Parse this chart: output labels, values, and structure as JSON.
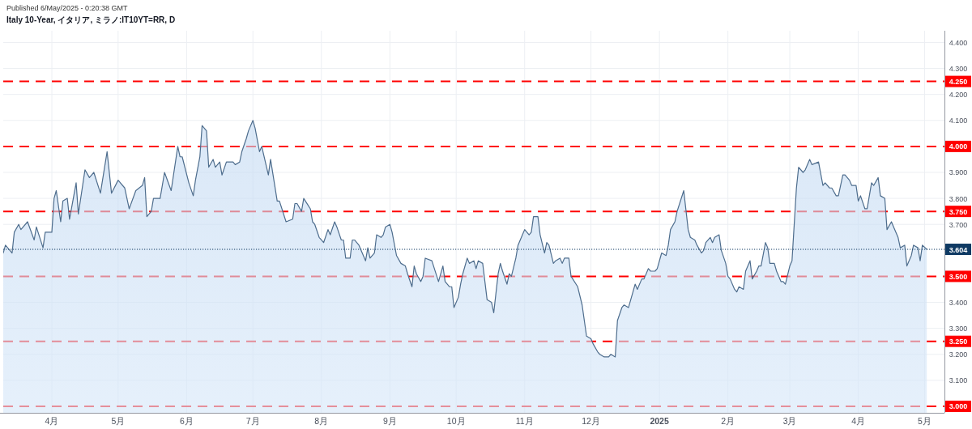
{
  "chart_data": {
    "type": "area",
    "title": "Italy 10-Year, イタリア, ミラノ:IT10YT=RR, D",
    "annotations": [
      "Published 6/May/2025 - 0:20:38 GMT"
    ],
    "x": [
      "2024-03-10",
      "2024-03-11",
      "2024-03-14",
      "2024-03-15",
      "2024-03-17",
      "2024-03-18",
      "2024-03-21",
      "2024-03-24",
      "2024-03-25",
      "2024-03-28",
      "2024-03-29",
      "2024-04-01",
      "2024-04-02",
      "2024-04-03",
      "2024-04-05",
      "2024-04-06",
      "2024-04-08",
      "2024-04-09",
      "2024-04-12",
      "2024-04-13",
      "2024-04-16",
      "2024-04-18",
      "2024-04-20",
      "2024-04-23",
      "2024-04-26",
      "2024-04-28",
      "2024-05-01",
      "2024-05-04",
      "2024-05-06",
      "2024-05-09",
      "2024-05-12",
      "2024-05-13",
      "2024-05-14",
      "2024-05-16",
      "2024-05-17",
      "2024-05-20",
      "2024-05-22",
      "2024-05-25",
      "2024-05-28",
      "2024-05-29",
      "2024-05-30",
      "2024-06-02",
      "2024-06-04",
      "2024-06-05",
      "2024-06-07",
      "2024-06-08",
      "2024-06-10",
      "2024-06-11",
      "2024-06-13",
      "2024-06-14",
      "2024-06-16",
      "2024-06-17",
      "2024-06-19",
      "2024-06-22",
      "2024-06-23",
      "2024-06-25",
      "2024-06-26",
      "2024-06-28",
      "2024-06-29",
      "2024-07-01",
      "2024-07-02",
      "2024-07-04",
      "2024-07-05",
      "2024-07-08",
      "2024-07-09",
      "2024-07-12",
      "2024-07-13",
      "2024-07-16",
      "2024-07-19",
      "2024-07-20",
      "2024-07-21",
      "2024-07-23",
      "2024-07-24",
      "2024-07-27",
      "2024-07-28",
      "2024-07-29",
      "2024-07-31",
      "2024-08-01",
      "2024-08-02",
      "2024-08-04",
      "2024-08-05",
      "2024-08-07",
      "2024-08-08",
      "2024-08-10",
      "2024-08-11",
      "2024-08-12",
      "2024-08-14",
      "2024-08-15",
      "2024-08-16",
      "2024-08-18",
      "2024-08-21",
      "2024-08-22",
      "2024-08-23",
      "2024-08-25",
      "2024-08-26",
      "2024-08-28",
      "2024-08-29",
      "2024-08-30",
      "2024-09-01",
      "2024-09-02",
      "2024-09-04",
      "2024-09-06",
      "2024-09-08",
      "2024-09-09",
      "2024-09-11",
      "2024-09-12",
      "2024-09-13",
      "2024-09-15",
      "2024-09-16",
      "2024-09-17",
      "2024-09-20",
      "2024-09-23",
      "2024-09-25",
      "2024-09-26",
      "2024-09-28",
      "2024-09-29",
      "2024-09-30",
      "2024-10-02",
      "2024-10-03",
      "2024-10-04",
      "2024-10-06",
      "2024-10-07",
      "2024-10-09",
      "2024-10-10",
      "2024-10-11",
      "2024-10-13",
      "2024-10-14",
      "2024-10-15",
      "2024-10-17",
      "2024-10-18",
      "2024-10-20",
      "2024-10-21",
      "2024-10-22",
      "2024-10-24",
      "2024-10-25",
      "2024-10-26",
      "2024-10-28",
      "2024-10-29",
      "2024-10-31",
      "2024-11-01",
      "2024-11-03",
      "2024-11-04",
      "2024-11-05",
      "2024-11-07",
      "2024-11-08",
      "2024-11-10",
      "2024-11-11",
      "2024-11-12",
      "2024-11-14",
      "2024-11-15",
      "2024-11-17",
      "2024-11-18",
      "2024-11-19",
      "2024-11-21",
      "2024-11-22",
      "2024-11-25",
      "2024-11-27",
      "2024-11-28",
      "2024-11-29",
      "2024-12-01",
      "2024-12-02",
      "2024-12-04",
      "2024-12-05",
      "2024-12-07",
      "2024-12-09",
      "2024-12-10",
      "2024-12-12",
      "2024-12-13",
      "2024-12-15",
      "2024-12-16",
      "2024-12-18",
      "2024-12-19",
      "2024-12-21",
      "2024-12-22",
      "2024-12-24",
      "2024-12-25",
      "2024-12-27",
      "2024-12-28",
      "2024-12-30",
      "2024-12-31",
      "2025-01-02",
      "2025-01-04",
      "2025-01-05",
      "2025-01-06",
      "2025-01-08",
      "2025-01-09",
      "2025-01-12",
      "2025-01-14",
      "2025-01-15",
      "2025-01-17",
      "2025-01-18",
      "2025-01-20",
      "2025-01-21",
      "2025-01-22",
      "2025-01-24",
      "2025-01-25",
      "2025-01-26",
      "2025-01-28",
      "2025-01-29",
      "2025-01-31",
      "2025-02-01",
      "2025-02-02",
      "2025-02-04",
      "2025-02-05",
      "2025-02-06",
      "2025-02-08",
      "2025-02-09",
      "2025-02-11",
      "2025-02-12",
      "2025-02-14",
      "2025-02-15",
      "2025-02-16",
      "2025-02-18",
      "2025-02-19",
      "2025-02-20",
      "2025-02-22",
      "2025-02-23",
      "2025-02-25",
      "2025-02-26",
      "2025-02-27",
      "2025-03-01",
      "2025-03-02",
      "2025-03-04",
      "2025-03-05",
      "2025-03-07",
      "2025-03-08",
      "2025-03-10",
      "2025-03-11",
      "2025-03-14",
      "2025-03-16",
      "2025-03-17",
      "2025-03-19",
      "2025-03-20",
      "2025-03-22",
      "2025-03-23",
      "2025-03-25",
      "2025-03-26",
      "2025-03-28",
      "2025-03-29",
      "2025-03-31",
      "2025-04-01",
      "2025-04-02",
      "2025-04-04",
      "2025-04-05",
      "2025-04-07",
      "2025-04-08",
      "2025-04-10",
      "2025-04-11",
      "2025-04-13",
      "2025-04-14",
      "2025-04-16",
      "2025-04-17",
      "2025-04-19",
      "2025-04-20",
      "2025-04-22",
      "2025-04-23",
      "2025-04-25",
      "2025-04-26",
      "2025-04-28",
      "2025-04-29",
      "2025-04-30",
      "2025-05-02"
    ],
    "series": [
      {
        "color": "#4e6d8d",
        "values": [
          3.59,
          3.62,
          3.59,
          3.67,
          3.7,
          3.68,
          3.71,
          3.64,
          3.69,
          3.61,
          3.67,
          3.67,
          3.8,
          3.83,
          3.71,
          3.79,
          3.8,
          3.72,
          3.86,
          3.74,
          3.91,
          3.88,
          3.9,
          3.82,
          3.98,
          3.82,
          3.87,
          3.84,
          3.76,
          3.83,
          3.85,
          3.88,
          3.73,
          3.75,
          3.8,
          3.8,
          3.9,
          3.83,
          4.0,
          3.96,
          3.96,
          3.86,
          3.81,
          3.87,
          3.96,
          4.08,
          4.06,
          3.92,
          3.95,
          3.92,
          3.94,
          3.89,
          3.94,
          3.94,
          3.93,
          3.94,
          3.98,
          4.03,
          4.06,
          4.1,
          4.07,
          3.98,
          4.0,
          3.89,
          3.95,
          3.79,
          3.79,
          3.71,
          3.72,
          3.78,
          3.78,
          3.75,
          3.8,
          3.76,
          3.71,
          3.7,
          3.65,
          3.64,
          3.63,
          3.68,
          3.66,
          3.71,
          3.69,
          3.64,
          3.64,
          3.57,
          3.57,
          3.64,
          3.64,
          3.62,
          3.56,
          3.61,
          3.57,
          3.59,
          3.66,
          3.65,
          3.66,
          3.69,
          3.7,
          3.67,
          3.58,
          3.55,
          3.54,
          3.51,
          3.46,
          3.54,
          3.51,
          3.48,
          3.5,
          3.57,
          3.56,
          3.48,
          3.54,
          3.48,
          3.46,
          3.46,
          3.38,
          3.42,
          3.47,
          3.51,
          3.57,
          3.55,
          3.56,
          3.53,
          3.56,
          3.55,
          3.48,
          3.41,
          3.4,
          3.36,
          3.51,
          3.55,
          3.52,
          3.47,
          3.51,
          3.5,
          3.57,
          3.62,
          3.66,
          3.68,
          3.66,
          3.67,
          3.73,
          3.73,
          3.66,
          3.59,
          3.63,
          3.62,
          3.55,
          3.56,
          3.57,
          3.55,
          3.57,
          3.57,
          3.5,
          3.46,
          3.39,
          3.33,
          3.27,
          3.26,
          3.24,
          3.21,
          3.2,
          3.19,
          3.19,
          3.2,
          3.19,
          3.33,
          3.38,
          3.39,
          3.38,
          3.41,
          3.47,
          3.45,
          3.49,
          3.49,
          3.53,
          3.52,
          3.52,
          3.53,
          3.59,
          3.58,
          3.62,
          3.68,
          3.71,
          3.75,
          3.83,
          3.68,
          3.65,
          3.64,
          3.62,
          3.59,
          3.6,
          3.63,
          3.65,
          3.63,
          3.65,
          3.66,
          3.6,
          3.55,
          3.5,
          3.49,
          3.45,
          3.44,
          3.46,
          3.45,
          3.52,
          3.56,
          3.49,
          3.52,
          3.54,
          3.54,
          3.63,
          3.61,
          3.55,
          3.55,
          3.52,
          3.48,
          3.48,
          3.47,
          3.54,
          3.56,
          3.84,
          3.92,
          3.9,
          3.91,
          3.95,
          3.93,
          3.94,
          3.85,
          3.86,
          3.84,
          3.84,
          3.81,
          3.81,
          3.89,
          3.89,
          3.87,
          3.85,
          3.85,
          3.79,
          3.81,
          3.76,
          3.76,
          3.86,
          3.85,
          3.88,
          3.81,
          3.8,
          3.68,
          3.71,
          3.69,
          3.65,
          3.61,
          3.62,
          3.54,
          3.58,
          3.62,
          3.61,
          3.56,
          3.62,
          3.604
        ]
      }
    ],
    "xlim": [
      "2024-03-10",
      "2025-05-10"
    ],
    "xticks": [
      {
        "value": "2024-04-01",
        "label": "4月"
      },
      {
        "value": "2024-05-01",
        "label": "5月"
      },
      {
        "value": "2024-06-01",
        "label": "6月"
      },
      {
        "value": "2024-07-01",
        "label": "7月"
      },
      {
        "value": "2024-08-01",
        "label": "8月"
      },
      {
        "value": "2024-09-01",
        "label": "9月"
      },
      {
        "value": "2024-10-01",
        "label": "10月"
      },
      {
        "value": "2024-11-01",
        "label": "11月"
      },
      {
        "value": "2024-12-01",
        "label": "12月"
      },
      {
        "value": "2025-01-01",
        "label": "2025"
      },
      {
        "value": "2025-02-01",
        "label": "2月"
      },
      {
        "value": "2025-03-01",
        "label": "3月"
      },
      {
        "value": "2025-04-01",
        "label": "4月"
      },
      {
        "value": "2025-05-01",
        "label": "5月"
      }
    ],
    "ylim": [
      2.975,
      4.445
    ],
    "yticks": [
      {
        "value": 3.1,
        "label": "3.100"
      },
      {
        "value": 3.2,
        "label": "3.200"
      },
      {
        "value": 3.3,
        "label": "3.300"
      },
      {
        "value": 3.4,
        "label": "3.400"
      },
      {
        "value": 3.7,
        "label": "3.700"
      },
      {
        "value": 3.8,
        "label": "3.800"
      },
      {
        "value": 3.9,
        "label": "3.900"
      },
      {
        "value": 4.1,
        "label": "4.100"
      },
      {
        "value": 4.2,
        "label": "4.200"
      },
      {
        "value": 4.3,
        "label": "4.300"
      },
      {
        "value": 4.4,
        "label": "4.400"
      }
    ],
    "grid": true,
    "ref_lines": [
      {
        "axis": "y",
        "value": 4.25,
        "label": "4.250",
        "color": "#ff0000",
        "line_style": "dashed"
      },
      {
        "axis": "y",
        "value": 4.0,
        "label": "4.000",
        "color": "#ff0000",
        "line_style": "dashed"
      },
      {
        "axis": "y",
        "value": 3.75,
        "label": "3.750",
        "color": "#ff0000",
        "line_style": "dashed"
      },
      {
        "axis": "y",
        "value": 3.5,
        "label": "3.500",
        "color": "#ff0000",
        "line_style": "dashed"
      },
      {
        "axis": "y",
        "value": 3.25,
        "label": "3.250",
        "color": "#ff0000",
        "line_style": "dashed"
      },
      {
        "axis": "y",
        "value": 3.0,
        "label": "3.000",
        "color": "#ff0000",
        "line_style": "dashed"
      },
      {
        "axis": "y",
        "value": 3.604,
        "label": "3.604",
        "color": "#0f3a63",
        "line_style": "dotted"
      }
    ]
  }
}
